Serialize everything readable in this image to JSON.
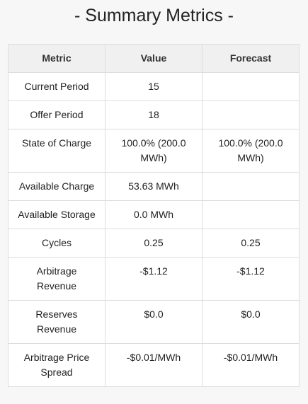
{
  "header": {
    "title": "- Summary Metrics -"
  },
  "table": {
    "columns": [
      "Metric",
      "Value",
      "Forecast"
    ],
    "rows": [
      [
        "Current Period",
        "15",
        null
      ],
      [
        "Offer Period",
        "18",
        null
      ],
      [
        "State of Charge",
        "100.0% (200.0 MWh)",
        "100.0% (200.0 MWh)"
      ],
      [
        "Available Charge",
        "53.63 MWh",
        null
      ],
      [
        "Available Storage",
        "0.0 MWh",
        null
      ],
      [
        "Cycles",
        "0.25",
        "0.25"
      ],
      [
        "Arbitrage Revenue",
        "-$1.12",
        "-$1.12"
      ],
      [
        "Reserves Revenue",
        "$0.0",
        "$0.0"
      ],
      [
        "Arbitrage Price Spread",
        "-$0.01/MWh",
        "-$0.01/MWh"
      ]
    ]
  }
}
